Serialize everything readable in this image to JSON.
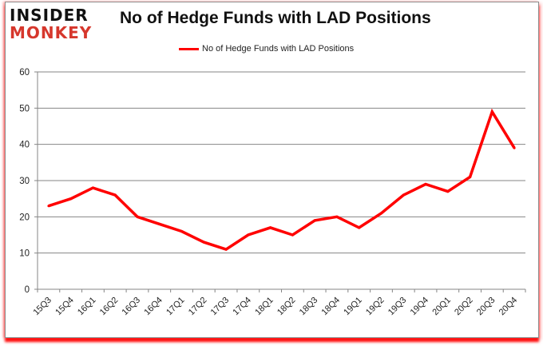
{
  "logo": {
    "line1": "INSIDER",
    "line2": "MONKEY"
  },
  "colors": {
    "series": "#ff0000",
    "grid": "#868686",
    "logo_red": "#d6372c"
  },
  "chart_data": {
    "type": "line",
    "title": "No of Hedge Funds with LAD Positions",
    "xlabel": "",
    "ylabel": "",
    "ylim": [
      0,
      60
    ],
    "yticks": [
      0,
      10,
      20,
      30,
      40,
      50,
      60
    ],
    "grid": true,
    "legend_position": "top-center",
    "categories": [
      "15Q3",
      "15Q4",
      "16Q1",
      "16Q2",
      "16Q3",
      "16Q4",
      "17Q1",
      "17Q2",
      "17Q3",
      "17Q4",
      "18Q1",
      "18Q2",
      "18Q3",
      "18Q4",
      "19Q1",
      "19Q2",
      "19Q3",
      "19Q4",
      "20Q1",
      "20Q2",
      "20Q3",
      "20Q4"
    ],
    "series": [
      {
        "name": "No of Hedge Funds with LAD Positions",
        "values": [
          23,
          25,
          28,
          26,
          20,
          18,
          16,
          13,
          11,
          15,
          17,
          15,
          19,
          20,
          17,
          21,
          26,
          29,
          27,
          31,
          49,
          39
        ]
      }
    ]
  }
}
